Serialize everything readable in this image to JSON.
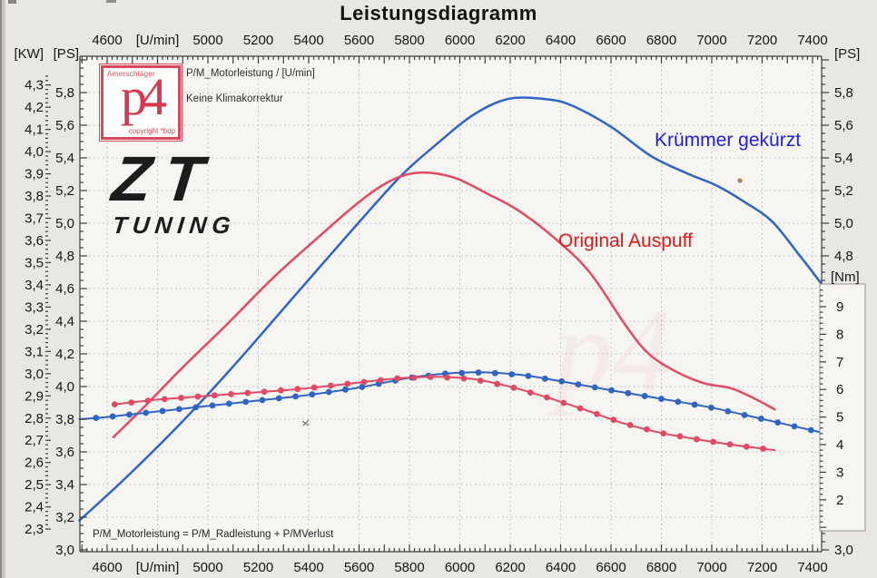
{
  "title": "Leistungsdiagramm",
  "plot": {
    "subtitle1": "P/M_Motorleistung / [U/min]",
    "subtitle2": "Keine Klimakorrektur",
    "formula": "P/M_Motorleistung = P/M_Radleistung + P/MVerlust",
    "series_labels": {
      "blue": "Krümmer gekürzt",
      "red": "Original Auspuff"
    }
  },
  "logos": {
    "p4": {
      "top": "Amerschläger",
      "main": "p4",
      "bottom": "copyright *bdp"
    },
    "zt": {
      "main": "ZT",
      "sub": "TUNING"
    }
  },
  "axes": {
    "x": {
      "unit_label": "[U/min]",
      "tick_values": [
        4600,
        4800,
        5000,
        5200,
        5400,
        5600,
        5800,
        6000,
        6200,
        6400,
        6600,
        6800,
        7000,
        7200,
        7400
      ],
      "tick_labels": [
        "4600",
        "[U/min]",
        "5000",
        "5200",
        "5400",
        "5600",
        "5800",
        "6000",
        "6200",
        "6400",
        "6600",
        "6800",
        "7000",
        "7200",
        "7400"
      ]
    },
    "left_kw": {
      "unit": "[KW]",
      "labels": [
        "4,3",
        "4,2",
        "4,1",
        "4,0",
        "3,9",
        "3,8",
        "3,7",
        "3,6",
        "3,5",
        "3,4",
        "3,3",
        "3,2",
        "3,1",
        "3,0",
        "2,9",
        "2,8",
        "2,7",
        "2,6",
        "2,5",
        "2,4",
        "2,3"
      ]
    },
    "left_ps": {
      "unit": "[PS]",
      "labels": [
        "5,8",
        "5,6",
        "5,4",
        "5,2",
        "5,0",
        "4,8",
        "4,6",
        "4,4",
        "4,2",
        "4,0",
        "3,8",
        "3,6",
        "3,4",
        "3,2",
        "3,0"
      ]
    },
    "right_ps": {
      "unit": "[PS]",
      "labels": [
        "5,8",
        "5,6",
        "5,4",
        "5,2",
        "5,0",
        "4,8"
      ],
      "bottom_label": "3,0"
    },
    "right_nm": {
      "unit": "[Nm]",
      "labels": [
        "9",
        "8",
        "7",
        "6",
        "5",
        "4",
        "3",
        "2"
      ]
    }
  },
  "colors": {
    "blue": "#2f63c4",
    "red": "#e24a64",
    "blue_text": "#2121dd",
    "red_text": "#e01818",
    "crimson": "#d6485c",
    "grid": "#b3b7c4",
    "axis": "#3c3c3c",
    "bg": "#e9e7e3",
    "plot_bg": "#f6f5f2"
  },
  "chart_data": {
    "type": "line",
    "xlabel": "[U/min]",
    "x_range": [
      4490,
      7436
    ],
    "y_axes": {
      "ps": {
        "label": "[PS]",
        "visible_range": [
          3.0,
          6.0
        ]
      },
      "nm": {
        "label": "[Nm]",
        "visible_range": [
          1.0,
          9.8
        ]
      }
    },
    "grid": "dotted, every 200 U/min and 0.2 PS",
    "series": [
      {
        "name": "Motorleistung Krümmer gekürzt",
        "data_name": "power-kruemmer-gekuerzt",
        "axis": "ps",
        "color": "blue",
        "style": "solid",
        "points": [
          [
            4490,
            3.18
          ],
          [
            4680,
            3.45
          ],
          [
            4895,
            3.78
          ],
          [
            5110,
            4.14
          ],
          [
            5330,
            4.53
          ],
          [
            5545,
            4.91
          ],
          [
            5760,
            5.28
          ],
          [
            5905,
            5.48
          ],
          [
            6050,
            5.66
          ],
          [
            6190,
            5.76
          ],
          [
            6340,
            5.76
          ],
          [
            6445,
            5.72
          ],
          [
            6600,
            5.59
          ],
          [
            6760,
            5.41
          ],
          [
            6910,
            5.3
          ],
          [
            7020,
            5.23
          ],
          [
            7130,
            5.13
          ],
          [
            7240,
            5.01
          ],
          [
            7345,
            4.81
          ],
          [
            7435,
            4.63
          ]
        ]
      },
      {
        "name": "Motorleistung Original Auspuff",
        "data_name": "power-original-auspuff",
        "axis": "ps",
        "color": "red",
        "style": "solid",
        "points": [
          [
            4625,
            3.69
          ],
          [
            4750,
            3.88
          ],
          [
            4895,
            4.11
          ],
          [
            5075,
            4.38
          ],
          [
            5255,
            4.66
          ],
          [
            5435,
            4.91
          ],
          [
            5600,
            5.13
          ],
          [
            5725,
            5.26
          ],
          [
            5840,
            5.31
          ],
          [
            5975,
            5.28
          ],
          [
            6110,
            5.18
          ],
          [
            6230,
            5.08
          ],
          [
            6375,
            4.91
          ],
          [
            6515,
            4.7
          ],
          [
            6660,
            4.37
          ],
          [
            6750,
            4.2
          ],
          [
            6860,
            4.09
          ],
          [
            6970,
            4.02
          ],
          [
            7075,
            3.99
          ],
          [
            7165,
            3.93
          ],
          [
            7250,
            3.86
          ]
        ]
      },
      {
        "name": "Drehmoment Krümmer gekürzt",
        "data_name": "torque-kruemmer-gekuerzt",
        "axis": "nm",
        "color": "blue",
        "style": "markers",
        "marker_step": 66,
        "points": [
          [
            4490,
            4.92
          ],
          [
            4600,
            5.0
          ],
          [
            4800,
            5.2
          ],
          [
            5000,
            5.4
          ],
          [
            5200,
            5.6
          ],
          [
            5400,
            5.8
          ],
          [
            5600,
            6.07
          ],
          [
            5800,
            6.42
          ],
          [
            5950,
            6.58
          ],
          [
            6100,
            6.62
          ],
          [
            6250,
            6.52
          ],
          [
            6400,
            6.3
          ],
          [
            6600,
            5.97
          ],
          [
            6800,
            5.66
          ],
          [
            7000,
            5.34
          ],
          [
            7200,
            4.93
          ],
          [
            7435,
            4.44
          ]
        ]
      },
      {
        "name": "Drehmoment Original Auspuff",
        "data_name": "torque-original-auspuff",
        "axis": "nm",
        "color": "red",
        "style": "markers",
        "marker_step": 66,
        "points": [
          [
            4630,
            5.46
          ],
          [
            4800,
            5.63
          ],
          [
            5000,
            5.77
          ],
          [
            5200,
            5.9
          ],
          [
            5400,
            6.05
          ],
          [
            5600,
            6.25
          ],
          [
            5750,
            6.4
          ],
          [
            5900,
            6.46
          ],
          [
            6050,
            6.38
          ],
          [
            6200,
            6.1
          ],
          [
            6350,
            5.7
          ],
          [
            6500,
            5.25
          ],
          [
            6650,
            4.77
          ],
          [
            6800,
            4.42
          ],
          [
            6950,
            4.18
          ],
          [
            7100,
            3.97
          ],
          [
            7250,
            3.8
          ]
        ]
      }
    ]
  }
}
